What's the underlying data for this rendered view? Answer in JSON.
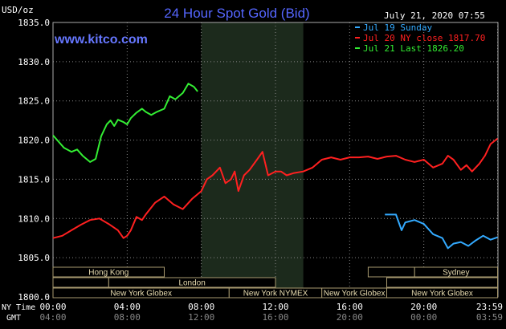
{
  "header": {
    "title": "24 Hour Spot Gold (Bid)",
    "unit": "USD/oz",
    "timestamp": "July 21, 2020 07:55",
    "site": "www.kitco.com"
  },
  "colors": {
    "background": "#000000",
    "grid": "#888888",
    "title": "#5566ff",
    "sunday": "#33aaff",
    "close": "#ff2020",
    "last": "#33ee33",
    "session_fill": "#e8dcb0",
    "session_border": "#a89a70",
    "highlight": "#1c2a1c"
  },
  "legend": [
    {
      "label": "Jul 19 Sunday",
      "color": "#33aaff"
    },
    {
      "label": "Jul 20 NY close 1817.70",
      "color": "#ff2020"
    },
    {
      "label": "Jul 21 Last 1826.20",
      "color": "#33ee33"
    }
  ],
  "footer": {
    "ny_time_label": "NY Time",
    "gmt_label": "GMT"
  },
  "chart_data": {
    "type": "line",
    "ylim": [
      1800,
      1835
    ],
    "xlim": [
      0,
      24
    ],
    "y_ticks": [
      {
        "value": 1835,
        "label": "1835.0"
      },
      {
        "value": 1830,
        "label": "1830.0"
      },
      {
        "value": 1825,
        "label": "1825.0"
      },
      {
        "value": 1820,
        "label": "1820.0"
      },
      {
        "value": 1815,
        "label": "1815.0"
      },
      {
        "value": 1810,
        "label": "1810.0"
      },
      {
        "value": 1805,
        "label": "1805.0"
      },
      {
        "value": 1800,
        "label": "1800.0"
      }
    ],
    "x_ticks": [
      {
        "value": 0,
        "ny": "00:00",
        "gmt": "04:00"
      },
      {
        "value": 4,
        "ny": "04:00",
        "gmt": "08:00"
      },
      {
        "value": 8,
        "ny": "08:00",
        "gmt": "12:00"
      },
      {
        "value": 12,
        "ny": "12:00",
        "gmt": "16:00"
      },
      {
        "value": 16,
        "ny": "16:00",
        "gmt": "20:00"
      },
      {
        "value": 20,
        "ny": "20:00",
        "gmt": "00:00"
      },
      {
        "value": 23.98,
        "ny": "23:59",
        "gmt": "03:59"
      }
    ],
    "highlight_range": [
      8.0,
      13.5
    ],
    "series": [
      {
        "name": "Jul 19 Sunday",
        "color": "#33aaff",
        "x": [
          17.9,
          18.5,
          18.8,
          19.0,
          19.5,
          20.0,
          20.5,
          21.0,
          21.3,
          21.6,
          22.0,
          22.4,
          22.8,
          23.2,
          23.6,
          23.98
        ],
        "y": [
          1810.5,
          1810.5,
          1808.5,
          1809.5,
          1809.8,
          1809.3,
          1808.0,
          1807.5,
          1806.2,
          1806.8,
          1807.0,
          1806.5,
          1807.2,
          1807.8,
          1807.3,
          1807.6
        ]
      },
      {
        "name": "Jul 20 NY close 1817.70",
        "color": "#ff2020",
        "x": [
          0,
          0.5,
          1.0,
          1.5,
          2.0,
          2.5,
          3.0,
          3.5,
          3.8,
          4.0,
          4.2,
          4.5,
          4.8,
          5.0,
          5.5,
          6.0,
          6.5,
          7.0,
          7.5,
          8.0,
          8.3,
          8.6,
          9.0,
          9.3,
          9.6,
          9.8,
          10.0,
          10.3,
          10.6,
          11.0,
          11.3,
          11.6,
          12.0,
          12.3,
          12.6,
          13.0,
          13.5,
          14.0,
          14.5,
          15.0,
          15.5,
          16.0,
          16.5,
          17.0,
          17.5,
          18.0,
          18.5,
          19.0,
          19.5,
          20.0,
          20.5,
          21.0,
          21.3,
          21.6,
          22.0,
          22.3,
          22.6,
          23.0,
          23.3,
          23.6,
          23.98
        ],
        "y": [
          1807.5,
          1807.8,
          1808.5,
          1809.2,
          1809.8,
          1810.0,
          1809.3,
          1808.5,
          1807.5,
          1807.8,
          1808.5,
          1810.2,
          1809.8,
          1810.5,
          1812.0,
          1812.8,
          1811.8,
          1811.2,
          1812.5,
          1813.5,
          1815.0,
          1815.5,
          1816.5,
          1814.5,
          1815.0,
          1816.0,
          1813.5,
          1815.5,
          1816.2,
          1817.5,
          1818.5,
          1815.5,
          1816.0,
          1816.0,
          1815.5,
          1815.8,
          1816.0,
          1816.5,
          1817.5,
          1817.8,
          1817.5,
          1817.8,
          1817.8,
          1817.9,
          1817.6,
          1817.9,
          1818.0,
          1817.5,
          1817.2,
          1817.5,
          1816.5,
          1817.0,
          1818.0,
          1817.5,
          1816.2,
          1816.8,
          1816.0,
          1817.0,
          1818.0,
          1819.5,
          1820.2
        ]
      },
      {
        "name": "Jul 21 Last 1826.20",
        "color": "#33ee33",
        "x": [
          0,
          0.3,
          0.6,
          1.0,
          1.3,
          1.6,
          2.0,
          2.3,
          2.6,
          2.9,
          3.1,
          3.3,
          3.5,
          3.8,
          4.0,
          4.2,
          4.5,
          4.8,
          5.0,
          5.3,
          5.6,
          6.0,
          6.3,
          6.6,
          7.0,
          7.3,
          7.6,
          7.8
        ],
        "y": [
          1820.6,
          1819.8,
          1819.0,
          1818.5,
          1818.8,
          1818.0,
          1817.2,
          1817.6,
          1820.5,
          1822.0,
          1822.5,
          1821.8,
          1822.6,
          1822.3,
          1822.0,
          1822.8,
          1823.5,
          1824.0,
          1823.6,
          1823.2,
          1823.6,
          1824.0,
          1825.6,
          1825.2,
          1826.0,
          1827.2,
          1826.8,
          1826.2
        ]
      }
    ],
    "sessions": [
      {
        "label": "Hong Kong",
        "row": 0,
        "start": 0,
        "end": 6.0
      },
      {
        "label": "Sydney",
        "row": 0,
        "start": 19.5,
        "end": 23.98
      },
      {
        "label": "London",
        "row": 1,
        "start": 3.0,
        "end": 12.0
      },
      {
        "label": "New York Globex",
        "row": 2,
        "start": 0,
        "end": 9.5
      },
      {
        "label": "New York NYMEX",
        "row": 2,
        "start": 9.5,
        "end": 14.5
      },
      {
        "label": "New York Globex",
        "row": 2,
        "start": 14.5,
        "end": 18.0
      },
      {
        "label": "New York Globex",
        "row": 2,
        "start": 18.0,
        "end": 23.98
      },
      {
        "label": "",
        "row": 0,
        "start": 17.0,
        "end": 19.5
      },
      {
        "label": "",
        "row": 1,
        "start": 0,
        "end": 3.0
      },
      {
        "label": "",
        "row": 1,
        "start": 18.0,
        "end": 23.98
      }
    ]
  }
}
